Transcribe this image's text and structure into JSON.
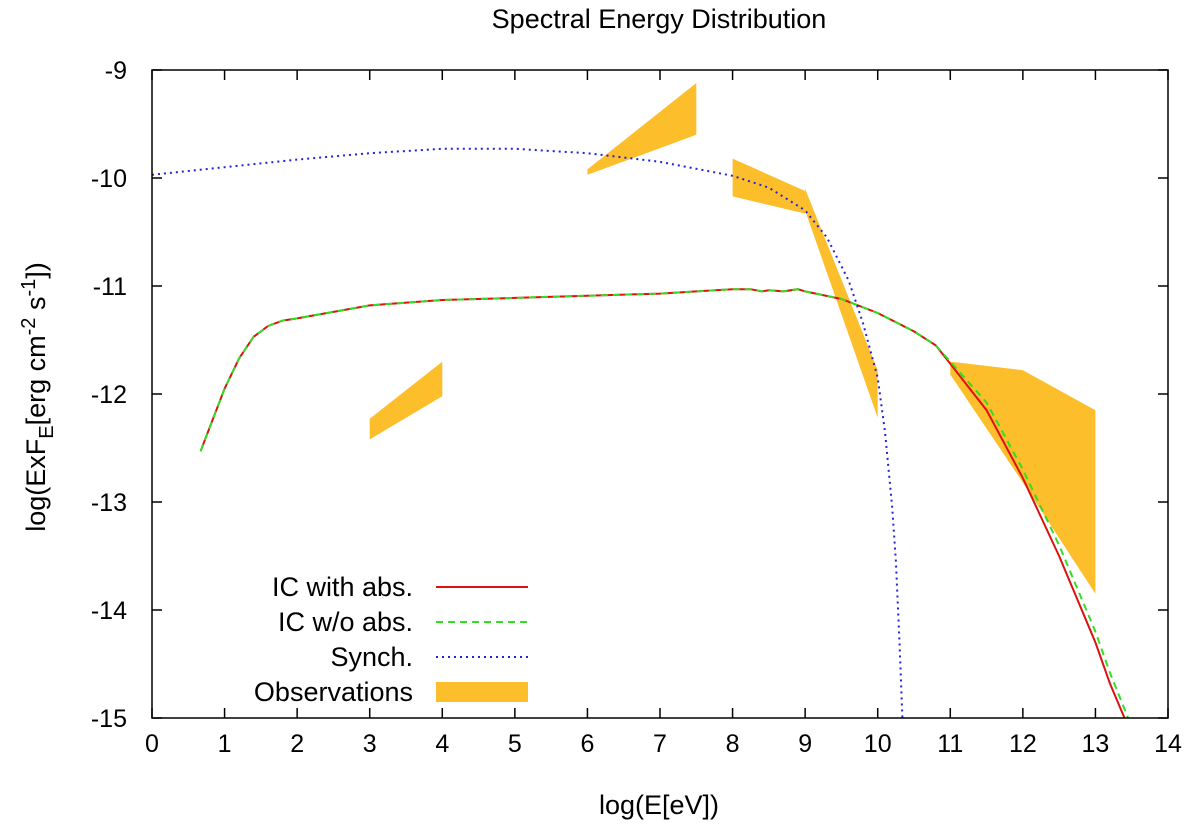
{
  "chart_data": {
    "type": "line",
    "title": "Spectral Energy Distribution",
    "xlabel": "log(E[eV])",
    "ylabel": {
      "parts": [
        "log(ExF",
        "E",
        "[erg cm",
        "-2",
        " s",
        "-1",
        "])"
      ]
    },
    "xlim": [
      0,
      14
    ],
    "ylim": [
      -15,
      -9
    ],
    "xticks": [
      0,
      1,
      2,
      3,
      4,
      5,
      6,
      7,
      8,
      9,
      10,
      11,
      12,
      13,
      14
    ],
    "yticks": [
      -9,
      -10,
      -11,
      -12,
      -13,
      -14,
      -15
    ],
    "grid": false,
    "legend_position": "bottom-left",
    "series": [
      {
        "name": "IC with abs.",
        "color": "#dd1111",
        "dash": "solid",
        "points": [
          [
            0.67,
            -12.53
          ],
          [
            0.8,
            -12.3
          ],
          [
            1.0,
            -11.95
          ],
          [
            1.2,
            -11.67
          ],
          [
            1.4,
            -11.47
          ],
          [
            1.6,
            -11.37
          ],
          [
            1.8,
            -11.32
          ],
          [
            2.0,
            -11.3
          ],
          [
            2.5,
            -11.24
          ],
          [
            3.0,
            -11.18
          ],
          [
            4.0,
            -11.13
          ],
          [
            5.0,
            -11.11
          ],
          [
            6.0,
            -11.09
          ],
          [
            7.0,
            -11.07
          ],
          [
            7.5,
            -11.05
          ],
          [
            8.0,
            -11.03
          ],
          [
            8.25,
            -11.03
          ],
          [
            8.4,
            -11.05
          ],
          [
            8.5,
            -11.04
          ],
          [
            8.7,
            -11.05
          ],
          [
            8.9,
            -11.03
          ],
          [
            9.0,
            -11.05
          ],
          [
            9.5,
            -11.12
          ],
          [
            10.0,
            -11.25
          ],
          [
            10.5,
            -11.42
          ],
          [
            10.8,
            -11.55
          ],
          [
            11.0,
            -11.72
          ],
          [
            11.5,
            -12.15
          ],
          [
            12.0,
            -12.78
          ],
          [
            12.5,
            -13.5
          ],
          [
            13.0,
            -14.3
          ],
          [
            13.2,
            -14.68
          ],
          [
            13.4,
            -15.0
          ]
        ]
      },
      {
        "name": "IC w/o abs.",
        "color": "#33dd22",
        "dash": "dashed",
        "points": [
          [
            0.67,
            -12.53
          ],
          [
            0.8,
            -12.3
          ],
          [
            1.0,
            -11.95
          ],
          [
            1.2,
            -11.67
          ],
          [
            1.4,
            -11.47
          ],
          [
            1.6,
            -11.37
          ],
          [
            1.8,
            -11.32
          ],
          [
            2.0,
            -11.3
          ],
          [
            2.5,
            -11.24
          ],
          [
            3.0,
            -11.18
          ],
          [
            4.0,
            -11.13
          ],
          [
            5.0,
            -11.11
          ],
          [
            6.0,
            -11.09
          ],
          [
            7.0,
            -11.07
          ],
          [
            7.5,
            -11.05
          ],
          [
            8.0,
            -11.03
          ],
          [
            8.25,
            -11.03
          ],
          [
            8.4,
            -11.05
          ],
          [
            8.5,
            -11.04
          ],
          [
            8.7,
            -11.05
          ],
          [
            8.9,
            -11.03
          ],
          [
            9.0,
            -11.05
          ],
          [
            9.5,
            -11.12
          ],
          [
            10.0,
            -11.25
          ],
          [
            10.5,
            -11.42
          ],
          [
            10.8,
            -11.55
          ],
          [
            11.0,
            -11.7
          ],
          [
            11.5,
            -12.08
          ],
          [
            12.0,
            -12.7
          ],
          [
            12.5,
            -13.4
          ],
          [
            13.0,
            -14.2
          ],
          [
            13.2,
            -14.58
          ],
          [
            13.45,
            -15.0
          ]
        ]
      },
      {
        "name": "Synch.",
        "color": "#2222dd",
        "dash": "dotted",
        "points": [
          [
            0.0,
            -9.97
          ],
          [
            1.0,
            -9.9
          ],
          [
            2.0,
            -9.83
          ],
          [
            3.0,
            -9.77
          ],
          [
            4.0,
            -9.73
          ],
          [
            5.0,
            -9.73
          ],
          [
            6.0,
            -9.77
          ],
          [
            7.0,
            -9.85
          ],
          [
            8.0,
            -9.98
          ],
          [
            8.5,
            -10.09
          ],
          [
            9.0,
            -10.3
          ],
          [
            9.3,
            -10.55
          ],
          [
            9.6,
            -10.95
          ],
          [
            9.8,
            -11.35
          ],
          [
            10.0,
            -11.85
          ],
          [
            10.1,
            -12.35
          ],
          [
            10.2,
            -13.05
          ],
          [
            10.25,
            -13.55
          ],
          [
            10.3,
            -14.3
          ],
          [
            10.34,
            -15.0
          ]
        ]
      }
    ],
    "observations": {
      "name": "Observations",
      "color": "#fdbe2c",
      "bowties": [
        [
          [
            3.0,
            -12.23
          ],
          [
            4.0,
            -11.7
          ],
          [
            4.0,
            -12.02
          ],
          [
            3.0,
            -12.42
          ]
        ],
        [
          [
            6.0,
            -9.92
          ],
          [
            7.5,
            -9.12
          ],
          [
            7.5,
            -9.6
          ],
          [
            6.0,
            -9.97
          ]
        ],
        [
          [
            8.0,
            -9.82
          ],
          [
            9.0,
            -10.12
          ],
          [
            9.0,
            -10.33
          ],
          [
            8.0,
            -10.17
          ]
        ],
        [
          [
            9.0,
            -10.1
          ],
          [
            10.0,
            -11.78
          ],
          [
            10.0,
            -12.22
          ],
          [
            9.0,
            -10.3
          ]
        ],
        [
          [
            11.0,
            -11.7
          ],
          [
            12.0,
            -11.78
          ],
          [
            13.0,
            -12.15
          ],
          [
            13.0,
            -13.85
          ],
          [
            12.0,
            -12.82
          ],
          [
            11.0,
            -11.82
          ]
        ]
      ]
    }
  }
}
